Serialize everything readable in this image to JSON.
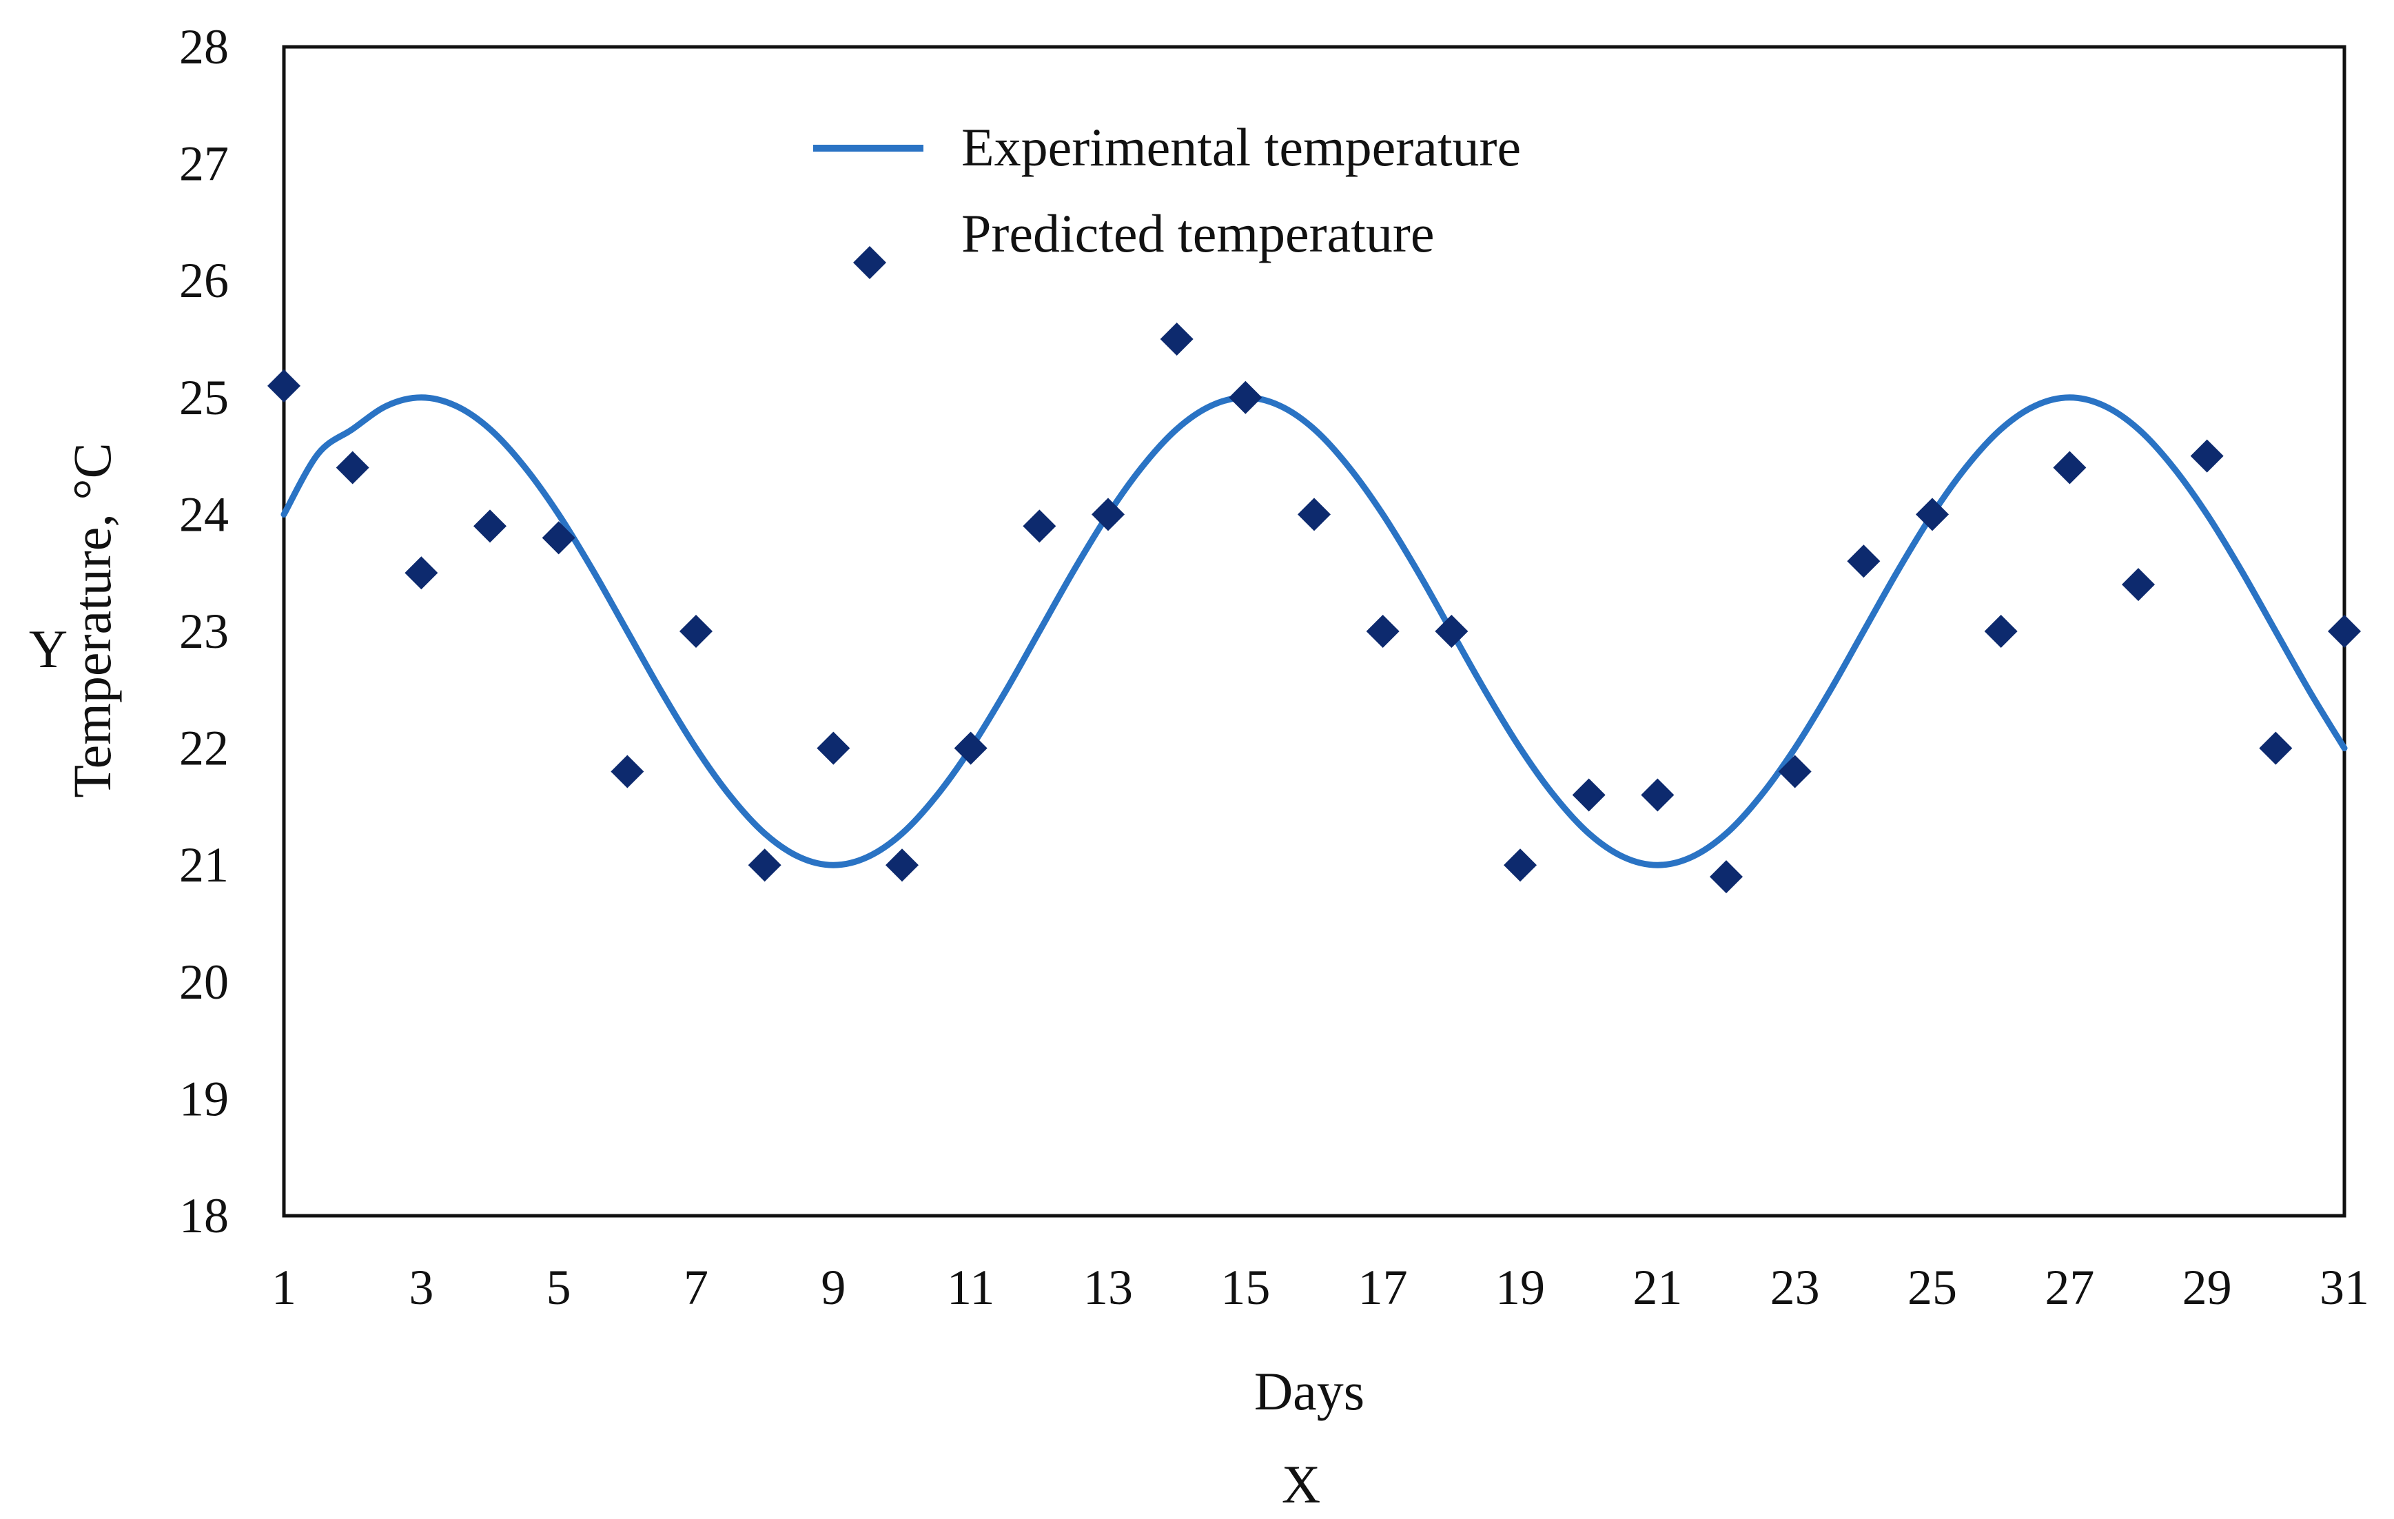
{
  "chart_data": {
    "type": "line",
    "title": "",
    "xlabel": "Days",
    "ylabel": "Temperature, °C",
    "x_axis_letter": "X",
    "y_axis_letter": "Y",
    "xlim": [
      1,
      31
    ],
    "ylim": [
      18,
      28
    ],
    "x_ticks": [
      1,
      3,
      5,
      7,
      9,
      11,
      13,
      15,
      17,
      19,
      21,
      23,
      25,
      27,
      29,
      31
    ],
    "y_ticks": [
      18,
      19,
      20,
      21,
      22,
      23,
      24,
      25,
      26,
      27,
      28
    ],
    "grid": false,
    "legend_position": "top-center",
    "series": [
      {
        "name": "Experimental temperature",
        "kind": "line",
        "color": "#2a73c4",
        "x": [
          1,
          1.5,
          2,
          2.5,
          3,
          3.5,
          4,
          4.5,
          5,
          5.5,
          6,
          6.5,
          7,
          7.5,
          8,
          8.5,
          9,
          9.5,
          10,
          10.5,
          11,
          11.5,
          12,
          12.5,
          13,
          13.5,
          14,
          14.5,
          15,
          15.5,
          16,
          16.5,
          17,
          17.5,
          18,
          18.5,
          19,
          19.5,
          20,
          20.5,
          21,
          21.5,
          22,
          22.5,
          23,
          23.5,
          24,
          24.5,
          25,
          25.5,
          26,
          26.5,
          27,
          27.5,
          28,
          28.5,
          29,
          29.5,
          30,
          30.5,
          31
        ],
        "values": [
          24.0,
          24.52,
          24.73,
          24.93,
          25.0,
          24.93,
          24.73,
          24.41,
          24.0,
          23.52,
          23.0,
          22.48,
          22.0,
          21.59,
          21.27,
          21.07,
          21.0,
          21.07,
          21.27,
          21.59,
          22.0,
          22.48,
          23.0,
          23.52,
          24.0,
          24.41,
          24.73,
          24.93,
          25.0,
          24.93,
          24.73,
          24.41,
          24.0,
          23.52,
          23.0,
          22.48,
          22.0,
          21.59,
          21.27,
          21.07,
          21.0,
          21.07,
          21.27,
          21.59,
          22.0,
          22.48,
          23.0,
          23.52,
          24.0,
          24.41,
          24.73,
          24.93,
          25.0,
          24.93,
          24.73,
          24.41,
          24.0,
          23.52,
          23.0,
          22.48,
          22.0
        ]
      },
      {
        "name": "Predicted temperature",
        "kind": "scatter",
        "marker": "diamond",
        "color": "#0d2a6e",
        "x": [
          1,
          2,
          3,
          4,
          5,
          6,
          7,
          8,
          9,
          10,
          11,
          12,
          13,
          14,
          15,
          16,
          17,
          18,
          19,
          20,
          21,
          22,
          23,
          24,
          25,
          26,
          27,
          28,
          29,
          30,
          31
        ],
        "values": [
          25.1,
          24.4,
          23.5,
          23.9,
          23.8,
          21.8,
          23.0,
          21.0,
          22.0,
          21.0,
          22.0,
          23.9,
          24.0,
          25.5,
          25.0,
          24.0,
          23.0,
          23.0,
          21.0,
          21.6,
          21.6,
          20.9,
          21.8,
          23.6,
          24.0,
          23.0,
          24.4,
          23.4,
          24.5,
          22.0,
          23.0
        ]
      }
    ]
  }
}
